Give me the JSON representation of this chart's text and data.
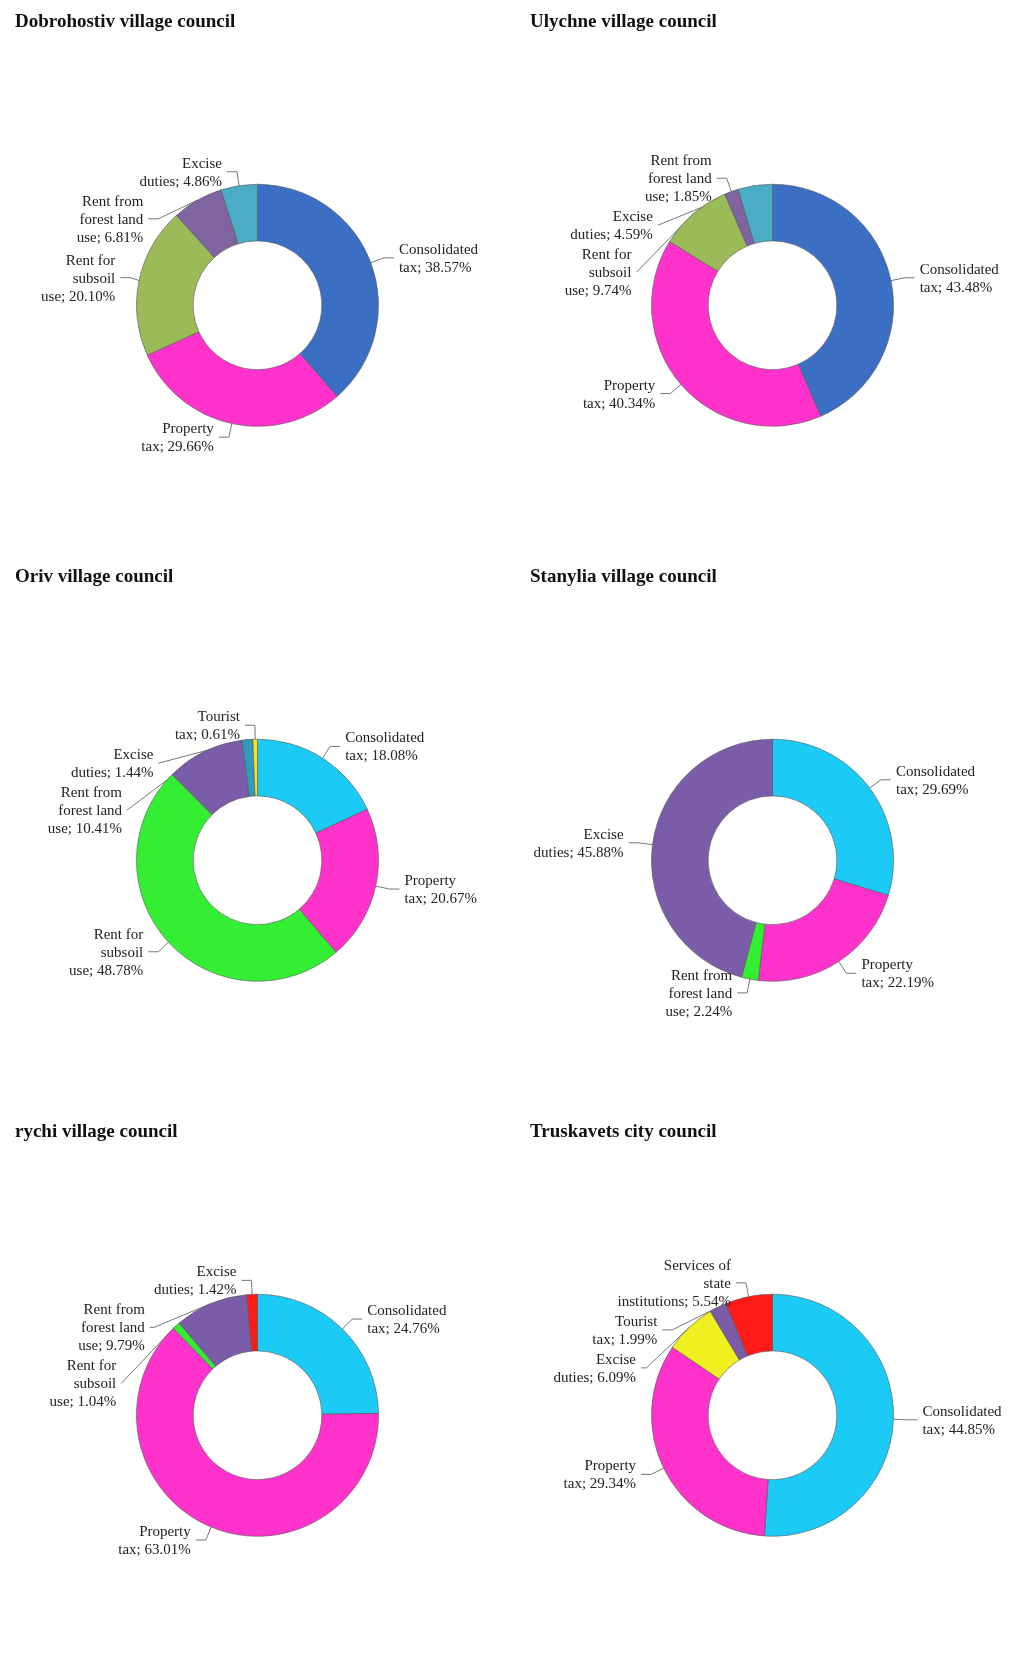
{
  "chart_data": [
    {
      "type": "donut",
      "title": "Dobrohostiv village council",
      "categories": [
        "Consolidated tax",
        "Property tax",
        "Rent for subsoil use",
        "Rent from forest land use",
        "Excise duties"
      ],
      "values": [
        38.57,
        29.66,
        20.1,
        6.81,
        4.86
      ],
      "value_labels": [
        "38.57%",
        "29.66%",
        "20.10%",
        "6.81%",
        "4.86%"
      ],
      "colors": [
        "#3b6fc4",
        "#ff33cc",
        "#9bbb59",
        "#8064a2",
        "#4bacc6"
      ]
    },
    {
      "type": "donut",
      "title": "Ulychne village council",
      "categories": [
        "Consolidated tax",
        "Property tax",
        "Rent for subsoil use",
        "Rent from forest land use",
        "Excise duties"
      ],
      "values": [
        43.48,
        40.34,
        9.74,
        1.85,
        4.59
      ],
      "value_labels": [
        "43.48%",
        "40.34%",
        "9.74%",
        "1.85%",
        "4.59%"
      ],
      "colors": [
        "#3b6fc4",
        "#ff33cc",
        "#9bbb59",
        "#8064a2",
        "#4bacc6"
      ]
    },
    {
      "type": "donut",
      "title": "Oriv village council",
      "categories": [
        "Consolidated tax",
        "Property tax",
        "Rent for subsoil use",
        "Rent from forest land use",
        "Excise duties",
        "Tourist tax"
      ],
      "values": [
        18.08,
        20.67,
        48.78,
        10.41,
        1.44,
        0.61
      ],
      "value_labels": [
        "18.08%",
        "20.67%",
        "48.78%",
        "10.41%",
        "1.44%",
        "0.61%"
      ],
      "colors": [
        "#1ccbf5",
        "#ff33cc",
        "#33ee33",
        "#7a5ca8",
        "#2e9bbf",
        "#f5e61b"
      ]
    },
    {
      "type": "donut",
      "title": "Stanylia village council",
      "categories": [
        "Consolidated tax",
        "Property tax",
        "Rent from forest land use",
        "Excise duties"
      ],
      "values": [
        29.69,
        22.19,
        2.24,
        45.88
      ],
      "value_labels": [
        "29.69%",
        "22.19%",
        "2.24%",
        "45.88%"
      ],
      "colors": [
        "#1ccbf5",
        "#ff33cc",
        "#33ee33",
        "#7a5ca8"
      ]
    },
    {
      "type": "donut",
      "title": "rychi village council",
      "categories": [
        "Consolidated tax",
        "Property tax",
        "Rent for subsoil use",
        "Rent from forest land use",
        "Excise duties"
      ],
      "values": [
        24.76,
        63.01,
        1.04,
        9.79,
        1.42
      ],
      "value_labels": [
        "24.76%",
        "63.01%",
        "1.04%",
        "9.79%",
        "1.42%"
      ],
      "colors": [
        "#1ccbf5",
        "#ff33cc",
        "#33ee33",
        "#7a5ca8",
        "#ff1a1a"
      ]
    },
    {
      "type": "donut",
      "title": "Truskavets city council",
      "categories": [
        "Consolidated tax",
        "Property tax",
        "Excise duties",
        "Tourist tax",
        "Services of state institutions"
      ],
      "values": [
        44.85,
        29.34,
        6.09,
        1.99,
        5.54
      ],
      "value_labels": [
        "44.85%",
        "29.34%",
        "6.09%",
        "1.99%",
        "5.54%"
      ],
      "colors": [
        "#1ccbf5",
        "#ff33cc",
        "#f0f020",
        "#7a5ca8",
        "#ff1a1a"
      ]
    }
  ]
}
